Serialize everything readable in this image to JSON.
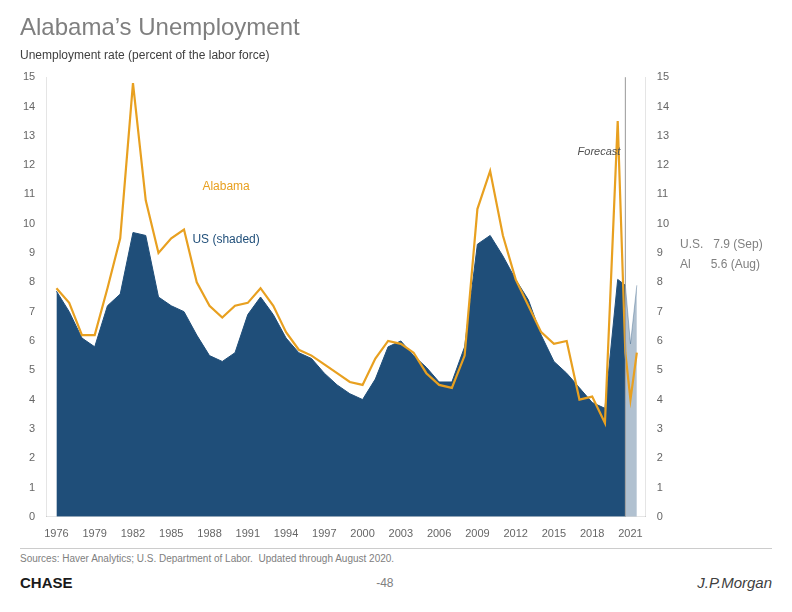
{
  "chart_data": {
    "type": "line",
    "title": "Alabama’s Unemployment",
    "subtitle": "Unemployment rate (percent of the labor force)",
    "x": [
      1976,
      1977,
      1978,
      1979,
      1980,
      1981,
      1982,
      1983,
      1984,
      1985,
      1986,
      1987,
      1988,
      1989,
      1990,
      1991,
      1992,
      1993,
      1994,
      1995,
      1996,
      1997,
      1998,
      1999,
      2000,
      2001,
      2002,
      2003,
      2004,
      2005,
      2006,
      2007,
      2008,
      2009,
      2010,
      2011,
      2012,
      2013,
      2014,
      2015,
      2016,
      2017,
      2018,
      2019,
      2020,
      2020.6,
      2021,
      2021.5
    ],
    "series": [
      {
        "name": "US (shaded)",
        "type": "area",
        "color": "#1F4E79",
        "values": [
          7.7,
          7.0,
          6.1,
          5.8,
          7.2,
          7.6,
          9.7,
          9.6,
          7.5,
          7.2,
          7.0,
          6.2,
          5.5,
          5.3,
          5.6,
          6.9,
          7.5,
          6.9,
          6.1,
          5.6,
          5.4,
          4.9,
          4.5,
          4.2,
          4.0,
          4.7,
          5.8,
          6.0,
          5.5,
          5.1,
          4.6,
          4.6,
          5.8,
          9.3,
          9.6,
          8.9,
          8.1,
          7.4,
          6.2,
          5.3,
          4.9,
          4.4,
          3.9,
          3.7,
          8.1,
          7.9,
          5.9,
          7.9
        ]
      },
      {
        "name": "Alabama",
        "type": "line",
        "color": "#E8A020",
        "values": [
          7.8,
          7.3,
          6.2,
          6.2,
          7.8,
          9.5,
          14.8,
          10.8,
          9.0,
          9.5,
          9.8,
          8.0,
          7.2,
          6.8,
          7.2,
          7.3,
          7.8,
          7.2,
          6.3,
          5.7,
          5.5,
          5.2,
          4.9,
          4.6,
          4.5,
          5.4,
          6.0,
          5.9,
          5.6,
          4.9,
          4.5,
          4.4,
          5.5,
          10.5,
          11.8,
          9.6,
          8.1,
          7.2,
          6.3,
          5.9,
          6.0,
          4.0,
          4.1,
          3.2,
          13.5,
          5.6,
          4.0,
          5.6
        ]
      }
    ],
    "xlim": [
      1975.2,
      2022.2
    ],
    "xticks": [
      1976,
      1979,
      1982,
      1985,
      1988,
      1991,
      1994,
      1997,
      2000,
      2003,
      2006,
      2009,
      2012,
      2015,
      2018,
      2021
    ],
    "ylim": [
      0,
      15
    ],
    "yticks": [
      0,
      1,
      2,
      3,
      4,
      5,
      6,
      7,
      8,
      9,
      10,
      11,
      12,
      13,
      14,
      15
    ],
    "grid": false,
    "forecast_start": 2020.6,
    "forecast_label": "Forecast",
    "annotations": [
      "U.S.   7.9 (Sep)",
      "Al      5.6 (Aug)"
    ],
    "source": "Sources: Haver Analytics; U.S. Department of Labor.  Updated through August 2020.",
    "footer": [
      "CHASE",
      "-48",
      "J.P.Morgan"
    ]
  }
}
